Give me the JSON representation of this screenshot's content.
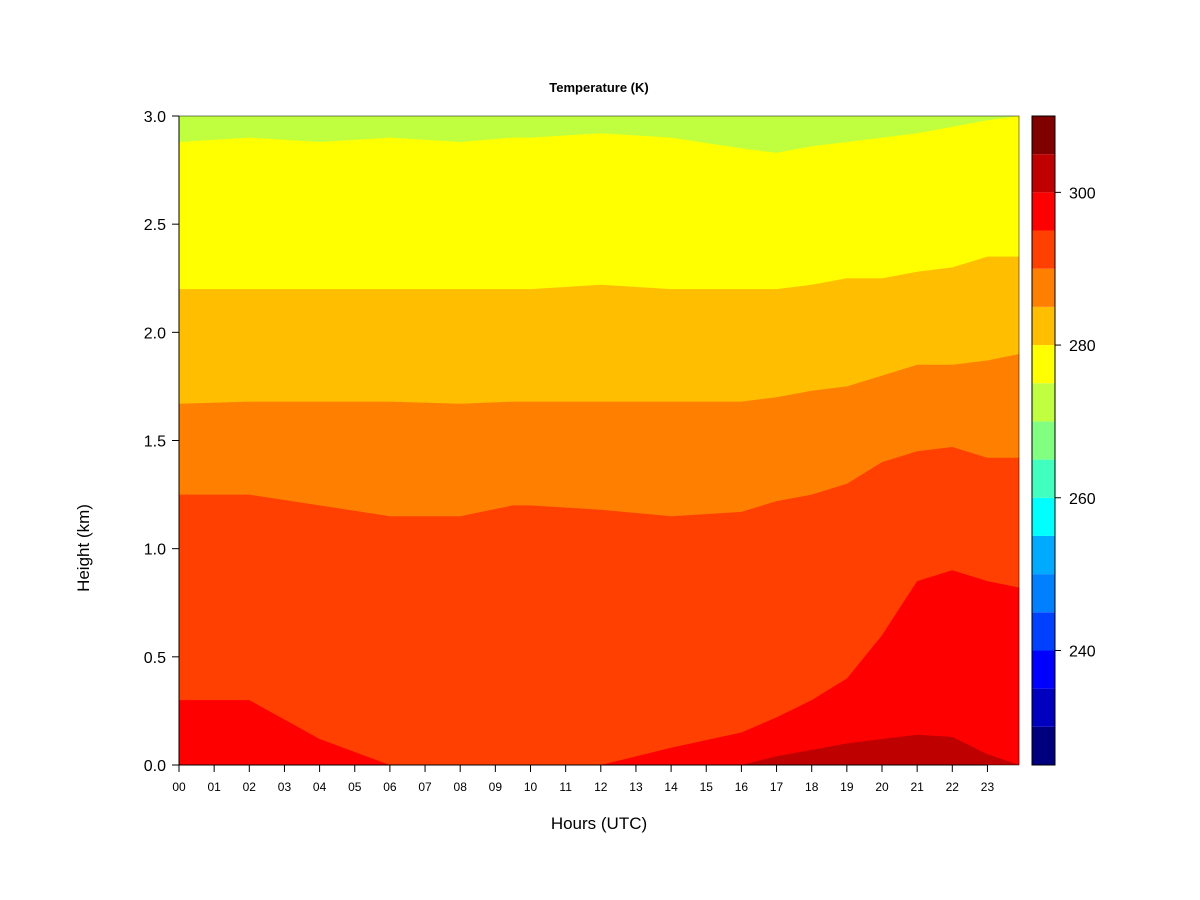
{
  "chart_data": {
    "type": "heatmap",
    "title": "Temperature (K)",
    "xlabel": "Hours (UTC)",
    "ylabel": "Height (km)",
    "x_ticks": [
      "00",
      "01",
      "02",
      "03",
      "04",
      "05",
      "06",
      "07",
      "08",
      "09",
      "10",
      "11",
      "12",
      "13",
      "14",
      "15",
      "16",
      "17",
      "18",
      "19",
      "20",
      "21",
      "22",
      "23"
    ],
    "xlim": [
      0,
      23.9
    ],
    "ylim": [
      0.0,
      3.0
    ],
    "y_ticks": [
      "0.0",
      "0.5",
      "1.0",
      "1.5",
      "2.0",
      "2.5",
      "3.0"
    ],
    "y_tick_values": [
      0.0,
      0.5,
      1.0,
      1.5,
      2.0,
      2.5,
      3.0
    ],
    "colorbar": {
      "range": [
        225,
        310
      ],
      "ticks": [
        "240",
        "260",
        "280",
        "300"
      ],
      "tick_values": [
        240,
        260,
        280,
        300
      ],
      "levels": [
        225,
        230,
        235,
        240,
        245,
        250,
        255,
        260,
        265,
        270,
        275,
        280,
        285,
        290,
        295,
        300,
        305,
        310
      ],
      "colors": [
        "#00007F",
        "#0000BF",
        "#0000FF",
        "#0040FF",
        "#0080FF",
        "#00AAFF",
        "#00FFFF",
        "#40FFBF",
        "#80FF80",
        "#BFFF40",
        "#FFFF00",
        "#FFBF00",
        "#FF8000",
        "#FF4000",
        "#FF0000",
        "#BF0000",
        "#800000"
      ]
    },
    "isotherm_heights_km": {
      "hours": [
        0,
        2,
        4,
        6,
        8,
        9.5,
        10,
        12,
        14,
        16,
        17,
        18,
        19,
        20,
        21,
        22,
        23,
        23.9
      ],
      "K270": [
        2.88,
        2.9,
        2.88,
        2.9,
        2.88,
        2.9,
        2.9,
        2.92,
        2.9,
        2.85,
        2.83,
        2.86,
        2.88,
        2.9,
        2.92,
        2.95,
        2.98,
        3.0
      ],
      "K280": [
        2.2,
        2.2,
        2.2,
        2.2,
        2.2,
        2.2,
        2.2,
        2.22,
        2.2,
        2.2,
        2.2,
        2.22,
        2.25,
        2.25,
        2.28,
        2.3,
        2.35,
        2.35
      ],
      "K285": [
        1.67,
        1.68,
        1.68,
        1.68,
        1.67,
        1.68,
        1.68,
        1.68,
        1.68,
        1.68,
        1.7,
        1.73,
        1.75,
        1.8,
        1.85,
        1.85,
        1.87,
        1.9
      ],
      "K290": [
        1.25,
        1.25,
        1.2,
        1.15,
        1.15,
        1.2,
        1.2,
        1.18,
        1.15,
        1.17,
        1.22,
        1.25,
        1.3,
        1.4,
        1.45,
        1.47,
        1.42,
        1.42
      ],
      "K295": [
        0.3,
        0.3,
        0.12,
        0.0,
        0.0,
        0.0,
        0.0,
        0.0,
        0.08,
        0.15,
        0.22,
        0.3,
        0.4,
        0.6,
        0.85,
        0.9,
        0.85,
        0.82
      ],
      "K300": [
        0.0,
        0.0,
        0.0,
        0.0,
        0.0,
        0.0,
        0.0,
        0.0,
        0.0,
        0.0,
        0.04,
        0.07,
        0.1,
        0.12,
        0.14,
        0.13,
        0.05,
        0.0
      ]
    }
  }
}
